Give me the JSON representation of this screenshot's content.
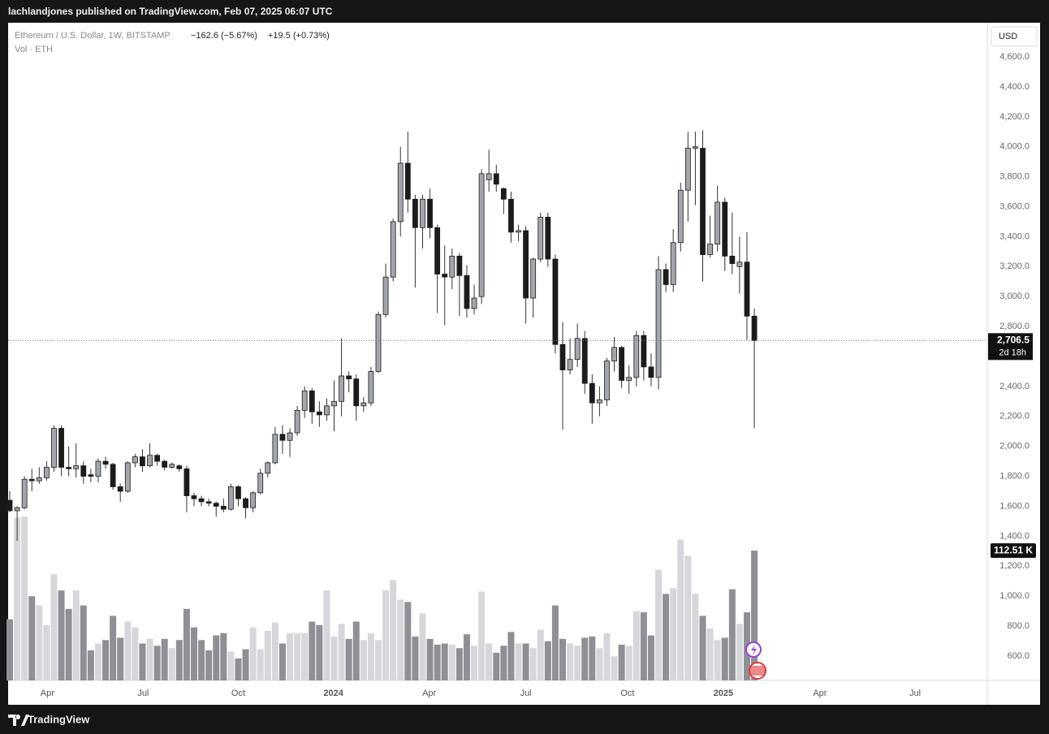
{
  "header": "lachlandjones published on TradingView.com, Feb 07, 2025 06:07 UTC",
  "footer": "TradingView",
  "chart_data": {
    "type": "candlestick",
    "title": "Ethereum / U.S. Dollar, 1W, BITSTAMP",
    "change": "−162.6 (−5.67%)",
    "change_volume": "+19.5 (+0.73%)",
    "volume_title": "Vol · ETH",
    "currency": "USD",
    "countdown": "2d 18h",
    "last_price_label": {
      "value": 2706.5,
      "label": "2,706.5"
    },
    "last_volume_label": {
      "value": 112.51,
      "label": "112.51 K"
    },
    "up_color": "#a3a6ad",
    "down_color": "#1c1c1c",
    "up_volume_color": "#d6d7db",
    "down_volume_color": "#8f9095",
    "open": [
      1640,
      1570,
      1590,
      1780,
      1770,
      1790,
      1860,
      2120,
      1860,
      1850,
      1870,
      1810,
      1800,
      1900,
      1880,
      1730,
      1700,
      1890,
      1930,
      1870,
      1940,
      1900,
      1860,
      1870,
      1850,
      1670,
      1650,
      1630,
      1620,
      1600,
      1580,
      1730,
      1650,
      1590,
      1690,
      1820,
      1890,
      2080,
      2040,
      2090,
      2240,
      2370,
      2230,
      2210,
      2270,
      2300,
      2470,
      2450,
      2270,
      2290,
      2500,
      2880,
      3130,
      3500,
      3890,
      3650,
      3460,
      3650,
      3460,
      3150,
      3130,
      3270,
      3140,
      2920,
      3000,
      3780,
      3820,
      3720,
      3650,
      3430,
      3440,
      2990,
      3250,
      3530,
      3250,
      2680,
      2510,
      2580,
      2720,
      2420,
      2290,
      2310,
      2570,
      2660,
      2440,
      2460,
      2740,
      2530,
      2460,
      3180,
      3080,
      3360,
      3710,
      3990,
      3990,
      3280,
      3350,
      3630,
      3270,
      3200,
      3230,
      2869.1
    ],
    "high": [
      1700,
      1600,
      1800,
      1850,
      1860,
      1900,
      2140,
      2140,
      2000,
      2020,
      1900,
      1850,
      1920,
      1930,
      1890,
      1750,
      1900,
      1950,
      1980,
      2020,
      1950,
      1910,
      1890,
      1880,
      1870,
      1690,
      1670,
      1650,
      1630,
      1650,
      1750,
      1740,
      1660,
      1700,
      1850,
      1900,
      2130,
      2140,
      2120,
      2270,
      2400,
      2390,
      2300,
      2320,
      2440,
      2720,
      2500,
      2480,
      2330,
      2530,
      2900,
      3220,
      3520,
      4000,
      4100,
      3680,
      3680,
      3720,
      3480,
      3340,
      3320,
      3290,
      3210,
      3080,
      3850,
      3980,
      3880,
      3730,
      3700,
      3480,
      3470,
      3260,
      3560,
      3560,
      3280,
      2830,
      2720,
      2820,
      2770,
      2480,
      2400,
      2590,
      2730,
      2670,
      2540,
      2770,
      2770,
      2620,
      3270,
      3220,
      3450,
      3760,
      4100,
      4100,
      4110,
      3540,
      3740,
      3660,
      3560,
      3400,
      3430,
      2920
    ],
    "low": [
      1560,
      1370,
      1580,
      1700,
      1750,
      1770,
      1830,
      1800,
      1800,
      1790,
      1750,
      1760,
      1760,
      1850,
      1710,
      1630,
      1690,
      1860,
      1830,
      1860,
      1870,
      1840,
      1850,
      1830,
      1560,
      1600,
      1600,
      1600,
      1530,
      1560,
      1570,
      1600,
      1520,
      1560,
      1680,
      1790,
      1880,
      1950,
      1930,
      2070,
      2190,
      2150,
      2130,
      2170,
      2100,
      2200,
      2360,
      2170,
      2230,
      2270,
      2490,
      2860,
      3100,
      3400,
      3560,
      3060,
      3320,
      3390,
      2890,
      2810,
      3050,
      2870,
      2860,
      2880,
      2950,
      3700,
      3700,
      3550,
      3360,
      3370,
      2820,
      2860,
      3230,
      3200,
      2620,
      2110,
      2480,
      2530,
      2350,
      2150,
      2200,
      2270,
      2500,
      2390,
      2350,
      2400,
      2440,
      2400,
      2380,
      3030,
      3030,
      3300,
      3500,
      3610,
      3100,
      3260,
      3300,
      3170,
      3150,
      3020,
      2710,
      2120
    ],
    "close": [
      1570,
      1590,
      1780,
      1770,
      1790,
      1860,
      2120,
      1860,
      1850,
      1870,
      1800,
      1800,
      1900,
      1880,
      1730,
      1700,
      1890,
      1930,
      1870,
      1940,
      1900,
      1860,
      1880,
      1850,
      1670,
      1650,
      1630,
      1620,
      1600,
      1580,
      1730,
      1650,
      1590,
      1690,
      1820,
      1890,
      2080,
      2040,
      2090,
      2240,
      2370,
      2230,
      2210,
      2270,
      2300,
      2470,
      2450,
      2270,
      2290,
      2500,
      2880,
      3130,
      3500,
      3890,
      3650,
      3460,
      3650,
      3460,
      3150,
      3130,
      3270,
      3140,
      2920,
      2990,
      3820,
      3820,
      3750,
      3650,
      3430,
      3440,
      2990,
      3250,
      3530,
      3250,
      2680,
      2510,
      2580,
      2720,
      2420,
      2290,
      2310,
      2570,
      2660,
      2440,
      2460,
      2740,
      2530,
      2460,
      3180,
      3080,
      3360,
      3710,
      3990,
      4000,
      3280,
      3350,
      3630,
      3270,
      3220,
      3230,
      2869.1,
      2706.5
    ],
    "volume": [
      53,
      141,
      142,
      73,
      65,
      48,
      92,
      78,
      62,
      78,
      65,
      26,
      32,
      35,
      56,
      37,
      51,
      46,
      32,
      36,
      30,
      36,
      28,
      35,
      62,
      46,
      35,
      26,
      39,
      41,
      25,
      19,
      27,
      46,
      27,
      43,
      50,
      32,
      41,
      41,
      41,
      51,
      48,
      78,
      38,
      49,
      36,
      51,
      35,
      41,
      35,
      78,
      87,
      70,
      68,
      38,
      58,
      36,
      31,
      32,
      31,
      28,
      40,
      30,
      77,
      32,
      24,
      30,
      42,
      32,
      32,
      28,
      44,
      34,
      65,
      36,
      32,
      30,
      37,
      38,
      28,
      41,
      21,
      31,
      30,
      60,
      59,
      39,
      96,
      75,
      80,
      122,
      108,
      75,
      56,
      45,
      35,
      37,
      79,
      49,
      59,
      112.51
    ],
    "xlim": [
      -0.22,
      132.6
    ],
    "xticks": [
      {
        "value": 5.1,
        "label": "Apr"
      },
      {
        "value": 18.1,
        "label": "Jul"
      },
      {
        "value": 31,
        "label": "Oct"
      },
      {
        "value": 43.9,
        "label": "2024"
      },
      {
        "value": 56.9,
        "label": "Apr"
      },
      {
        "value": 70,
        "label": "Jul"
      },
      {
        "value": 83.8,
        "label": "Oct"
      },
      {
        "value": 96.8,
        "label": "2025"
      },
      {
        "value": 109.9,
        "label": "Apr"
      },
      {
        "value": 122.8,
        "label": "Jul"
      }
    ],
    "ylim": [
      437,
      4828
    ],
    "yticks": [
      {
        "value": 600,
        "label": "600.0"
      },
      {
        "value": 800,
        "label": "800.0"
      },
      {
        "value": 1000,
        "label": "1,000.0"
      },
      {
        "value": 1200,
        "label": "1,200.0"
      },
      {
        "value": 1400,
        "label": "1,400.0"
      },
      {
        "value": 1600,
        "label": "1,600.0"
      },
      {
        "value": 1800,
        "label": "1,800.0"
      },
      {
        "value": 2000,
        "label": "2,000.0"
      },
      {
        "value": 2200,
        "label": "2,200.0"
      },
      {
        "value": 2400,
        "label": "2,400.0"
      },
      {
        "value": 2600,
        "label": "2,600.0"
      },
      {
        "value": 2800,
        "label": "2,800.0"
      },
      {
        "value": 3000,
        "label": "3,000.0"
      },
      {
        "value": 3200,
        "label": "3,200.0"
      },
      {
        "value": 3400,
        "label": "3,400.0"
      },
      {
        "value": 3600,
        "label": "3,600.0"
      },
      {
        "value": 3800,
        "label": "3,800.0"
      },
      {
        "value": 4000,
        "label": "4,000.0"
      },
      {
        "value": 4200,
        "label": "4,200.0"
      },
      {
        "value": 4400,
        "label": "4,400.0"
      },
      {
        "value": 4600,
        "label": "4,600.0"
      }
    ],
    "vollim": [
      0,
      570
    ]
  }
}
